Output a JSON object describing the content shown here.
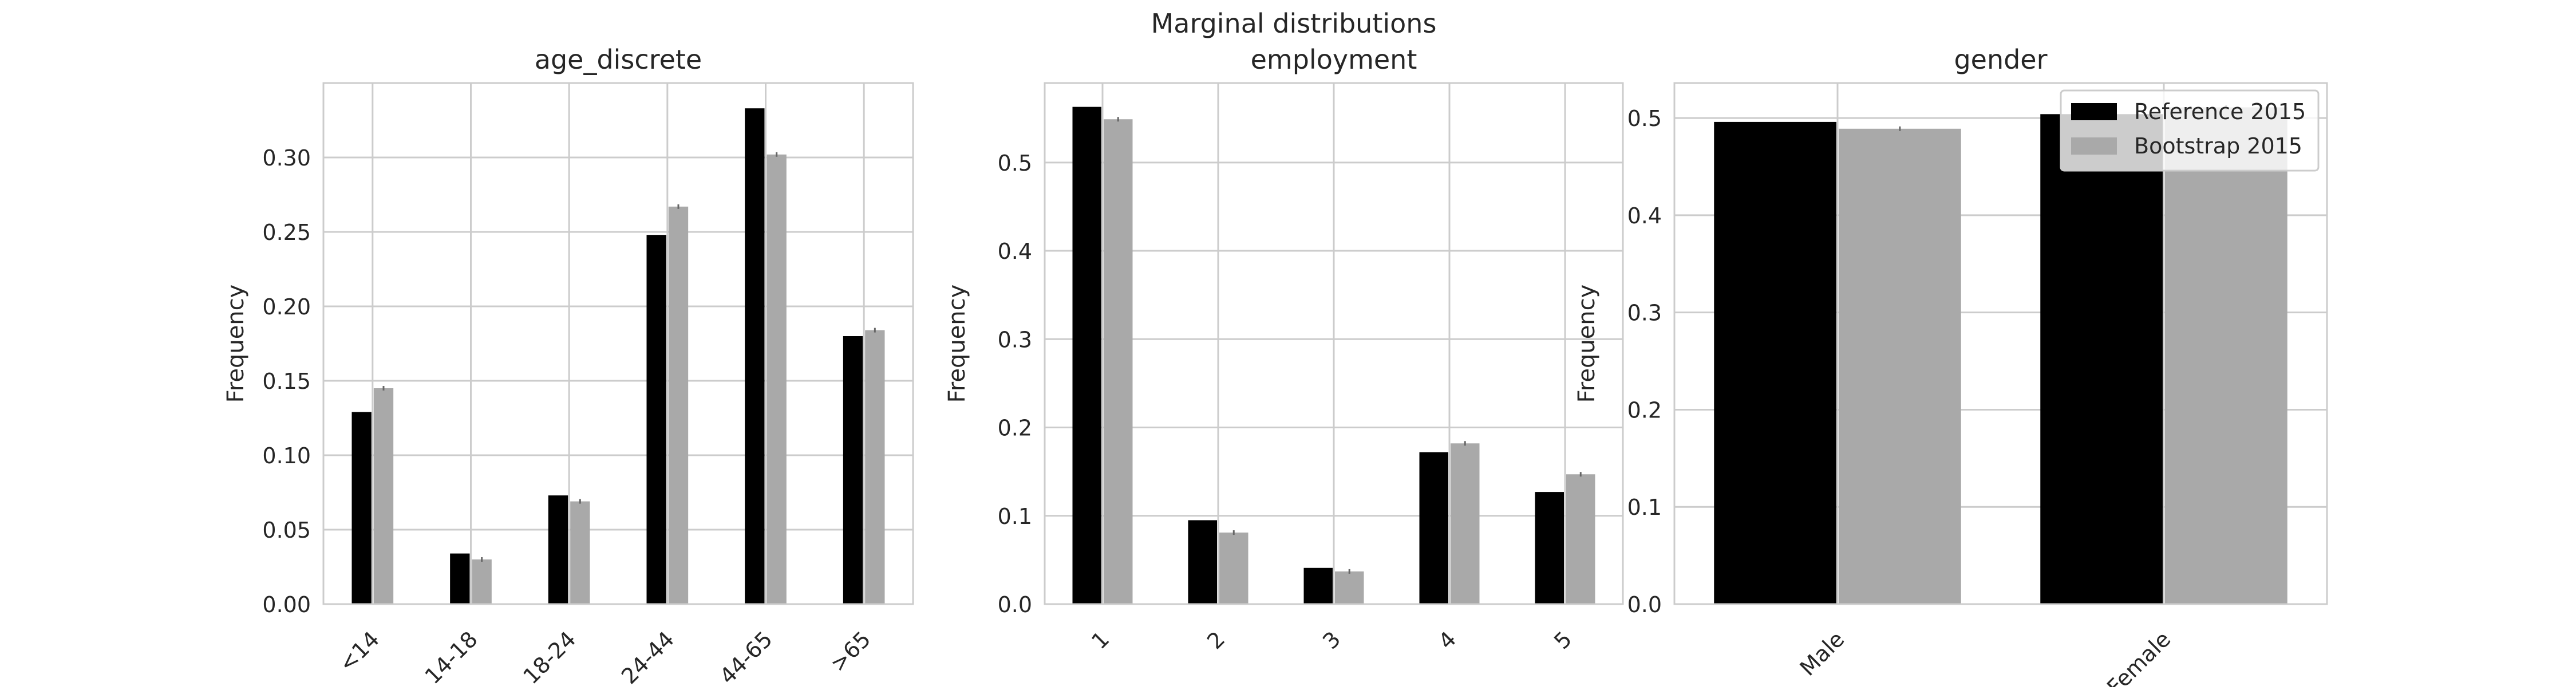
{
  "suptitle": "Marginal distributions",
  "colors": {
    "reference": "#000000",
    "bootstrap": "#a9a9a9",
    "grid": "#cccccc",
    "frame": "#cccccc",
    "errorbar": "#666666"
  },
  "chart_data": [
    {
      "type": "bar",
      "title": "age_discrete",
      "xlabel": "",
      "ylabel": "Frequency",
      "categories": [
        "<14",
        "14-18",
        "18-24",
        "24-44",
        "44-65",
        ">65"
      ],
      "series": [
        {
          "name": "Reference 2015",
          "values": [
            0.129,
            0.034,
            0.073,
            0.248,
            0.333,
            0.18
          ]
        },
        {
          "name": "Bootstrap 2015",
          "values": [
            0.145,
            0.03,
            0.069,
            0.267,
            0.302,
            0.184
          ]
        }
      ],
      "ylim": [
        0,
        0.35
      ],
      "yticks": [
        0.0,
        0.05,
        0.1,
        0.15,
        0.2,
        0.25,
        0.3
      ],
      "ytick_labels": [
        "0.00",
        "0.05",
        "0.10",
        "0.15",
        "0.20",
        "0.25",
        "0.30"
      ],
      "xtick_rotation": 45,
      "grid": true,
      "legend": "none"
    },
    {
      "type": "bar",
      "title": "employment",
      "xlabel": "",
      "ylabel": "Frequency",
      "categories": [
        "1",
        "2",
        "3",
        "4",
        "5"
      ],
      "series": [
        {
          "name": "Reference 2015",
          "values": [
            0.563,
            0.095,
            0.041,
            0.172,
            0.127
          ]
        },
        {
          "name": "Bootstrap 2015",
          "values": [
            0.549,
            0.081,
            0.037,
            0.182,
            0.147
          ]
        }
      ],
      "ylim": [
        0,
        0.59
      ],
      "yticks": [
        0.0,
        0.1,
        0.2,
        0.3,
        0.4,
        0.5
      ],
      "ytick_labels": [
        "0.0",
        "0.1",
        "0.2",
        "0.3",
        "0.4",
        "0.5"
      ],
      "xtick_rotation": 45,
      "grid": true,
      "legend": "none"
    },
    {
      "type": "bar",
      "title": "gender",
      "xlabel": "",
      "ylabel": "Frequency",
      "categories": [
        "Male",
        "Female"
      ],
      "series": [
        {
          "name": "Reference 2015",
          "values": [
            0.496,
            0.504
          ]
        },
        {
          "name": "Bootstrap 2015",
          "values": [
            0.489,
            0.511
          ]
        }
      ],
      "ylim": [
        0,
        0.536
      ],
      "yticks": [
        0.0,
        0.1,
        0.2,
        0.3,
        0.4,
        0.5
      ],
      "ytick_labels": [
        "0.0",
        "0.1",
        "0.2",
        "0.3",
        "0.4",
        "0.5"
      ],
      "xtick_rotation": 45,
      "grid": true,
      "legend": "top-right"
    }
  ]
}
